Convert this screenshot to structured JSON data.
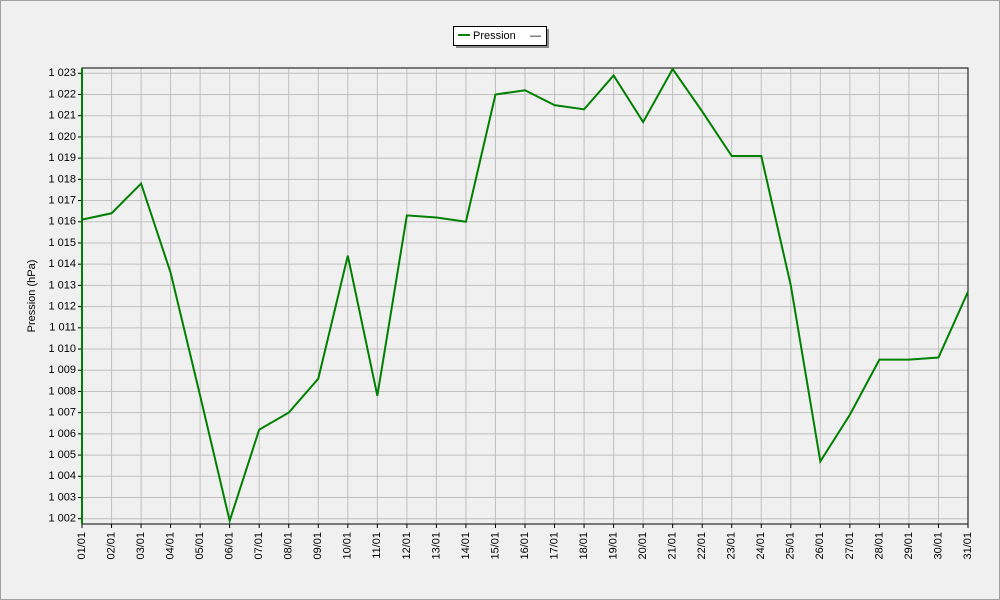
{
  "chart_data": {
    "type": "line",
    "y_label": "Pression (hPa)",
    "legend_note": "—",
    "categories": [
      "01/01",
      "02/01",
      "03/01",
      "04/01",
      "05/01",
      "06/01",
      "07/01",
      "08/01",
      "09/01",
      "10/01",
      "11/01",
      "12/01",
      "13/01",
      "14/01",
      "15/01",
      "16/01",
      "17/01",
      "18/01",
      "19/01",
      "20/01",
      "21/01",
      "22/01",
      "23/01",
      "24/01",
      "25/01",
      "26/01",
      "27/01",
      "28/01",
      "29/01",
      "30/01",
      "31/01"
    ],
    "series": [
      {
        "name": "Pression",
        "color": "#008000",
        "values": [
          1016.1,
          1016.4,
          1017.8,
          1013.6,
          1007.8,
          1001.9,
          1006.2,
          1007.0,
          1008.6,
          1014.4,
          1007.8,
          1016.3,
          1016.2,
          1016.0,
          1022.0,
          1022.2,
          1021.5,
          1021.3,
          1022.9,
          1020.7,
          1023.2,
          1021.2,
          1019.1,
          1019.1,
          1013.0,
          1004.7,
          1006.9,
          1009.5,
          1009.5,
          1009.6,
          1012.7
        ]
      }
    ],
    "ylim": [
      1001.75,
      1023.25
    ],
    "yticks": [
      {
        "value": 1002,
        "label": "1 002"
      },
      {
        "value": 1003,
        "label": "1 003"
      },
      {
        "value": 1004,
        "label": "1 004"
      },
      {
        "value": 1005,
        "label": "1 005"
      },
      {
        "value": 1006,
        "label": "1 006"
      },
      {
        "value": 1007,
        "label": "1 007"
      },
      {
        "value": 1008,
        "label": "1 008"
      },
      {
        "value": 1009,
        "label": "1 009"
      },
      {
        "value": 1010,
        "label": "1 010"
      },
      {
        "value": 1011,
        "label": "1 011"
      },
      {
        "value": 1012,
        "label": "1 012"
      },
      {
        "value": 1013,
        "label": "1 013"
      },
      {
        "value": 1014,
        "label": "1 014"
      },
      {
        "value": 1015,
        "label": "1 015"
      },
      {
        "value": 1016,
        "label": "1 016"
      },
      {
        "value": 1017,
        "label": "1 017"
      },
      {
        "value": 1018,
        "label": "1 018"
      },
      {
        "value": 1019,
        "label": "1 019"
      },
      {
        "value": 1020,
        "label": "1 020"
      },
      {
        "value": 1021,
        "label": "1 021"
      },
      {
        "value": 1022,
        "label": "1 022"
      },
      {
        "value": 1023,
        "label": "1 023"
      }
    ],
    "grid": true
  }
}
